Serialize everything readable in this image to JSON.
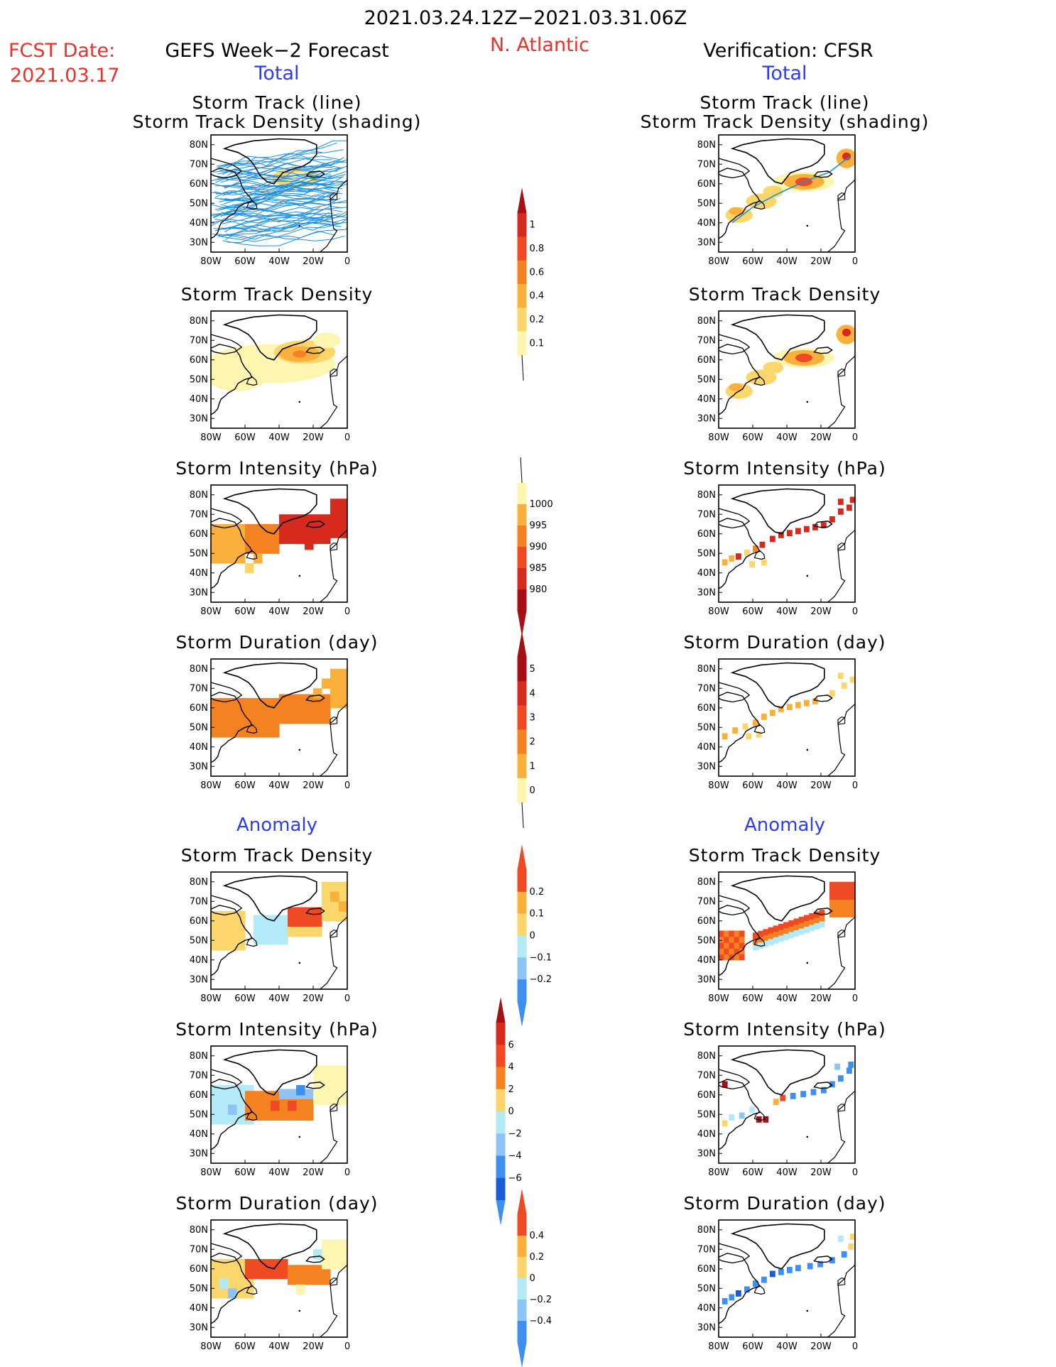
{
  "header": {
    "period": "2021.03.24.12Z−2021.03.31.06Z",
    "fcst_label": "FCST Date:",
    "fcst_date": "2021.03.17",
    "left_title": "GEFS Week−2 Forecast",
    "region": "N. Atlantic",
    "right_title": "Verification: CFSR",
    "total_left": "Total",
    "total_right": "Total",
    "anomaly_left": "Anomaly",
    "anomaly_right": "Anomaly"
  },
  "panel_titles": {
    "track_line": "Storm Track (line)",
    "track_shading": "Storm Track Density (shading)",
    "density": "Storm Track Density",
    "intensity": "Storm Intensity (hPa)",
    "duration": "Storm Duration (day)"
  },
  "map_axes": {
    "lat_ticks": [
      "80N",
      "70N",
      "60N",
      "50N",
      "40N",
      "30N"
    ],
    "lon_ticks": [
      "80W",
      "60W",
      "40W",
      "20W",
      "0"
    ]
  },
  "colors": {
    "yellow_light": "#fdf6b0",
    "yellow": "#fbd76b",
    "orange_light": "#fbb03b",
    "orange": "#f58220",
    "red_orange": "#ef4a23",
    "red": "#d62a1e",
    "dark_red": "#a50f15",
    "cyan_light": "#b3eaf7",
    "blue_light": "#8dc3f5",
    "blue": "#3d8ff0",
    "blue_dark": "#1a5bd6",
    "track_line": "#1f8fe0"
  },
  "colorbars": [
    {
      "id": "cb-density",
      "labels": [
        "1",
        "0.8",
        "0.6",
        "0.4",
        "0.2",
        "0.1"
      ]
    },
    {
      "id": "cb-intensity",
      "labels": [
        "1000",
        "995",
        "990",
        "985",
        "980"
      ]
    },
    {
      "id": "cb-duration",
      "labels": [
        "5",
        "4",
        "3",
        "2",
        "1",
        "0"
      ]
    },
    {
      "id": "cb-dens-anom",
      "labels": [
        "0.2",
        "0.1",
        "0",
        "−0.1",
        "−0.2"
      ]
    },
    {
      "id": "cb-int-anom",
      "labels": [
        "6",
        "4",
        "2",
        "0",
        "−2",
        "−4",
        "−6"
      ]
    },
    {
      "id": "cb-dur-anom",
      "labels": [
        "0.4",
        "0.2",
        "0",
        "−0.2",
        "−0.4"
      ]
    }
  ],
  "chart_data": {
    "type": "heatmap",
    "title": "2021.03.24.12Z−2021.03.31.06Z",
    "region": "N. Atlantic",
    "xlim": [
      -80,
      0
    ],
    "ylim": [
      25,
      85
    ],
    "panels": [
      {
        "column": "GEFS Week-2 Forecast",
        "group": "Total",
        "variable": "Storm Track (line) / Storm Track Density (shading)"
      },
      {
        "column": "Verification: CFSR",
        "group": "Total",
        "variable": "Storm Track (line) / Storm Track Density (shading)"
      },
      {
        "column": "GEFS Week-2 Forecast",
        "group": "Total",
        "variable": "Storm Track Density"
      },
      {
        "column": "Verification: CFSR",
        "group": "Total",
        "variable": "Storm Track Density"
      },
      {
        "column": "GEFS Week-2 Forecast",
        "group": "Total",
        "variable": "Storm Intensity (hPa)"
      },
      {
        "column": "Verification: CFSR",
        "group": "Total",
        "variable": "Storm Intensity (hPa)"
      },
      {
        "column": "GEFS Week-2 Forecast",
        "group": "Total",
        "variable": "Storm Duration (day)"
      },
      {
        "column": "Verification: CFSR",
        "group": "Total",
        "variable": "Storm Duration (day)"
      },
      {
        "column": "GEFS Week-2 Forecast",
        "group": "Anomaly",
        "variable": "Storm Track Density"
      },
      {
        "column": "Verification: CFSR",
        "group": "Anomaly",
        "variable": "Storm Track Density"
      },
      {
        "column": "GEFS Week-2 Forecast",
        "group": "Anomaly",
        "variable": "Storm Intensity (hPa)"
      },
      {
        "column": "Verification: CFSR",
        "group": "Anomaly",
        "variable": "Storm Intensity (hPa)"
      },
      {
        "column": "GEFS Week-2 Forecast",
        "group": "Anomaly",
        "variable": "Storm Duration (day)"
      },
      {
        "column": "Verification: CFSR",
        "group": "Anomaly",
        "variable": "Storm Duration (day)"
      }
    ],
    "colorbar_levels": {
      "density": [
        0.1,
        0.2,
        0.4,
        0.6,
        0.8,
        1
      ],
      "intensity": [
        1000,
        995,
        990,
        985,
        980
      ],
      "duration": [
        0,
        1,
        2,
        3,
        4,
        5
      ],
      "density_anomaly": [
        -0.2,
        -0.1,
        0,
        0.1,
        0.2
      ],
      "intensity_anomaly": [
        -6,
        -4,
        -2,
        0,
        2,
        4,
        6
      ],
      "duration_anomaly": [
        -0.4,
        -0.2,
        0,
        0.2,
        0.4
      ]
    }
  }
}
